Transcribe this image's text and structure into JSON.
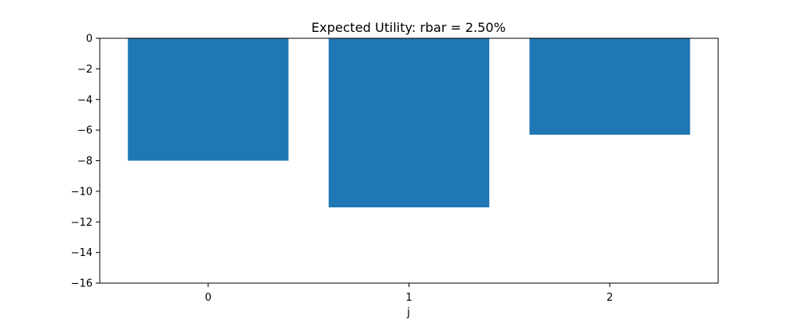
{
  "chart_data": {
    "type": "bar",
    "title": "Expected Utility: rbar = 2.50%",
    "xlabel": "j",
    "ylabel": "",
    "categories": [
      "0",
      "1",
      "2"
    ],
    "values": [
      -8.0,
      -11.05,
      -6.3
    ],
    "ylim": [
      -16,
      0
    ],
    "yticks": [
      0,
      -2,
      -4,
      -6,
      -8,
      -10,
      -12,
      -14,
      -16
    ],
    "ytick_labels": [
      "0",
      "−2",
      "−4",
      "−6",
      "−8",
      "−10",
      "−12",
      "−14",
      "−16"
    ],
    "grid": false,
    "bar_color": "#1f77b4"
  }
}
